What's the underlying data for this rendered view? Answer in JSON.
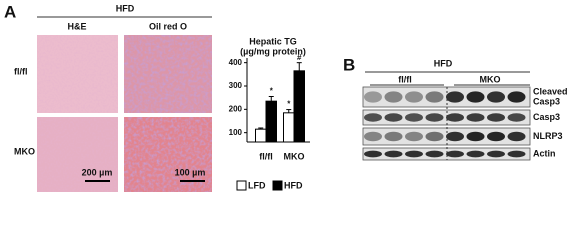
{
  "panel_a": {
    "label": "A",
    "header": "HFD",
    "columns": [
      "H&E",
      "Oil red O"
    ],
    "rows": [
      "fl/fl",
      "MKO"
    ],
    "scale_bars": [
      "200 µm",
      "100 µm"
    ]
  },
  "chart_data": {
    "type": "bar",
    "title": [
      "Hepatic TG",
      "(µg/mg protein)"
    ],
    "categories": [
      "fl/fl",
      "MKO"
    ],
    "series": [
      {
        "name": "LFD",
        "color": "#ffffff",
        "values": [
          115,
          185
        ],
        "errors": [
          5,
          14
        ],
        "significance": [
          null,
          "*"
        ]
      },
      {
        "name": "HFD",
        "color": "#000000",
        "values": [
          235,
          365
        ],
        "errors": [
          20,
          35
        ],
        "significance": [
          "*",
          "#"
        ]
      }
    ],
    "ylim": [
      60,
      420
    ],
    "yticks": [
      100,
      200,
      300,
      400
    ],
    "legend": "bottom"
  },
  "panel_b": {
    "label": "B",
    "header": "HFD",
    "groups": [
      "fl/fl",
      "MKO"
    ],
    "blots": [
      [
        "Cleaved",
        "Casp3"
      ],
      [
        "Casp3"
      ],
      [
        "NLRP3"
      ],
      [
        "Actin"
      ]
    ]
  }
}
